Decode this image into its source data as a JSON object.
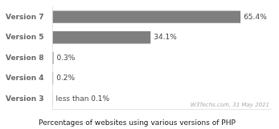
{
  "chart_data": {
    "type": "bar",
    "orientation": "horizontal",
    "title": "Percentages of websites using various versions of PHP",
    "annotations": [
      "W3Techs.com, 31 May 2021"
    ],
    "categories": [
      "Version 7",
      "Version 5",
      "Version 8",
      "Version 4",
      "Version 3"
    ],
    "values": [
      65.4,
      34.1,
      0.3,
      0.2,
      0.05
    ],
    "value_labels": [
      "65.4%",
      "34.1%",
      "0.3%",
      "0.2%",
      "less than 0.1%"
    ],
    "data_labels": true,
    "color": "#7f7f7f",
    "xlim": [
      0,
      76
    ],
    "tick_labels": "y",
    "grid": false
  }
}
